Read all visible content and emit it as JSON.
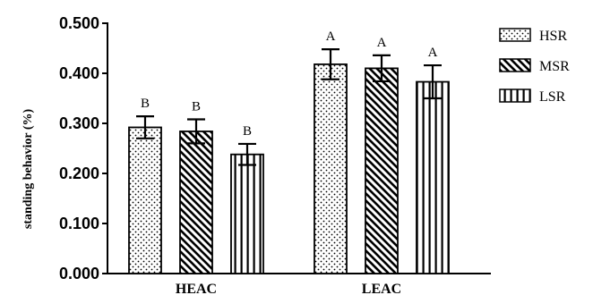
{
  "chart_data": {
    "type": "bar",
    "title": "",
    "xlabel": "",
    "ylabel": "standing behavior (%)",
    "ylim": [
      0,
      0.5
    ],
    "yticks": [
      "0.000",
      "0.100",
      "0.200",
      "0.300",
      "0.400",
      "0.500"
    ],
    "categories": [
      "HEAC",
      "LEAC"
    ],
    "legend_position": "top-right",
    "grid": false,
    "series": [
      {
        "name": "HSR",
        "pattern": "dots",
        "values": [
          0.292,
          0.418
        ],
        "errors": [
          0.022,
          0.03
        ],
        "labels": [
          "B",
          "A"
        ]
      },
      {
        "name": "MSR",
        "pattern": "diagonal",
        "values": [
          0.284,
          0.41
        ],
        "errors": [
          0.024,
          0.026
        ],
        "labels": [
          "B",
          "A"
        ]
      },
      {
        "name": "LSR",
        "pattern": "vertical",
        "values": [
          0.238,
          0.383
        ],
        "errors": [
          0.021,
          0.033
        ],
        "labels": [
          "B",
          "A"
        ]
      }
    ]
  }
}
